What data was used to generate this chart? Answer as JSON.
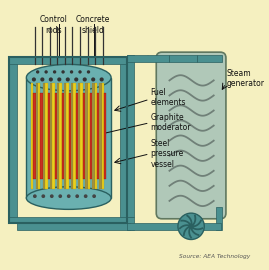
{
  "bg_color": "#f5f0c0",
  "teal": "#4a9090",
  "teal_light": "#6ab0b0",
  "teal_dark": "#2a6060",
  "gray_steam": "#b0c8b8",
  "yellow_fuel": "#e8d020",
  "red_fuel": "#c83020",
  "olive_graphite": "#a09040",
  "source_text": "Source: AEA Technology",
  "labels": {
    "control_rods": "Control\nrods",
    "concrete_shield": "Concrete\nshield",
    "fuel_elements": "Fuel\nelements",
    "graphite_mod": "Graphite\nmoderator",
    "steel_vessel": "Steel\npressure\nvessel",
    "steam_gen": "Steam\ngenerator"
  }
}
